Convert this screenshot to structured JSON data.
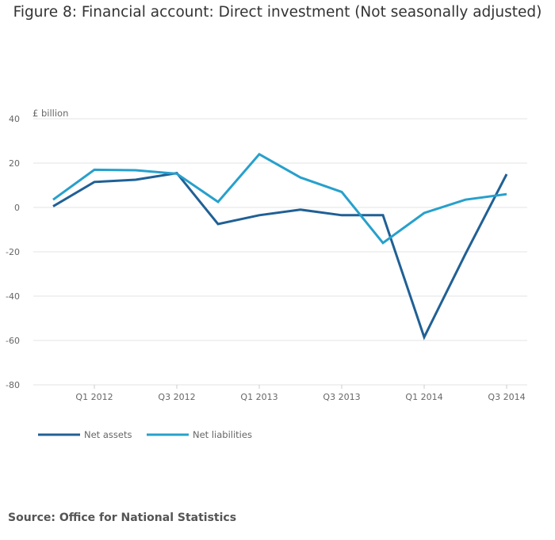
{
  "chart_data": {
    "type": "line",
    "title": "Figure 8: Financial account: Direct investment (Not seasonally adjusted)",
    "ylabel": "£ billion",
    "xlabel": "",
    "ylim": [
      -80,
      40
    ],
    "yticks": [
      40,
      20,
      0,
      -20,
      -40,
      -60,
      -80
    ],
    "categories": [
      "Q4 2011",
      "Q1 2012",
      "Q2 2012",
      "Q3 2012",
      "Q4 2012",
      "Q1 2013",
      "Q2 2013",
      "Q3 2013",
      "Q4 2013",
      "Q1 2014",
      "Q2 2014",
      "Q3 2014"
    ],
    "x_tick_labels": [
      {
        "index": 1,
        "label": "Q1 2012"
      },
      {
        "index": 3,
        "label": "Q3 2012"
      },
      {
        "index": 5,
        "label": "Q1 2013"
      },
      {
        "index": 7,
        "label": "Q3 2013"
      },
      {
        "index": 9,
        "label": "Q1 2014"
      },
      {
        "index": 11,
        "label": "Q3 2014"
      }
    ],
    "series": [
      {
        "name": "Net assets",
        "color": "#206095",
        "values": [
          0.5,
          11.5,
          12.5,
          15.5,
          -7.5,
          -3.5,
          -1,
          -3.5,
          -3.5,
          -58.5,
          -21,
          15
        ]
      },
      {
        "name": "Net liabilities",
        "color": "#27a0cc",
        "values": [
          3.5,
          17,
          16.8,
          15.2,
          2.5,
          24,
          13.5,
          7,
          -16,
          -2.5,
          3.5,
          6
        ]
      }
    ],
    "grid": true,
    "legend": "bottom-left"
  },
  "source": "Source: Office for National Statistics"
}
